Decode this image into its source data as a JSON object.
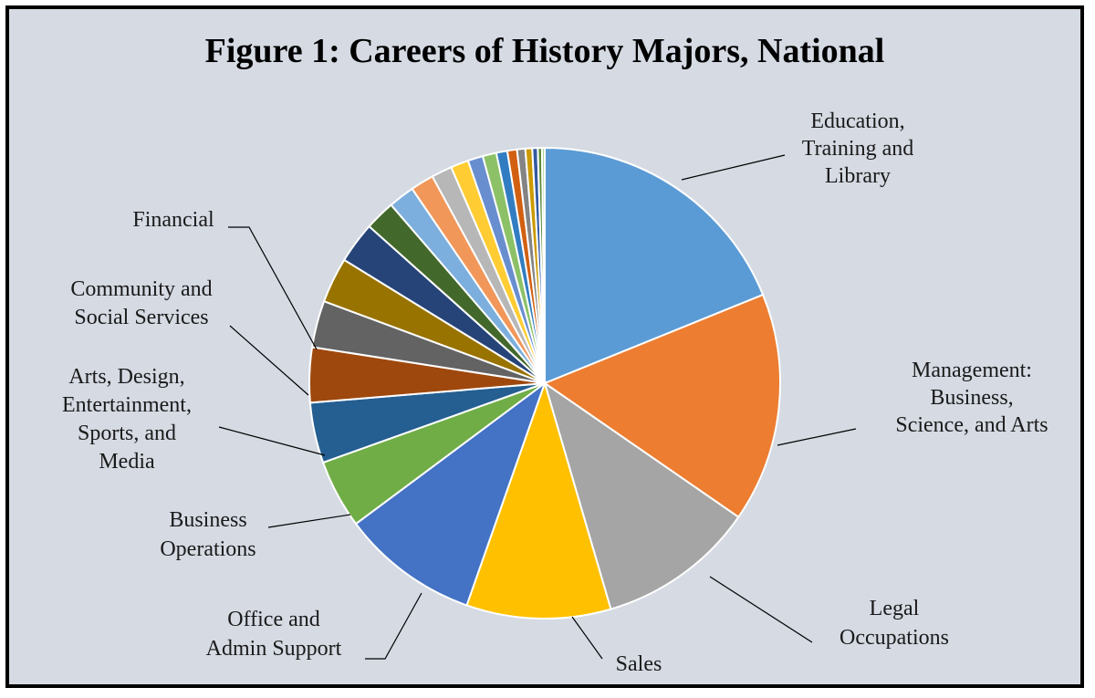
{
  "chart_data": {
    "type": "pie",
    "title": "Figure 1: Careers of History Majors, National",
    "slices": [
      {
        "label": "Education, Training and Library",
        "value": 20.0,
        "color": "#5b9bd5"
      },
      {
        "label": "Management: Business, Science, and Arts",
        "value": 16.7,
        "color": "#ed7d31"
      },
      {
        "label": "Legal Occupations",
        "value": 11.5,
        "color": "#a5a5a5"
      },
      {
        "label": "Sales",
        "value": 10.5,
        "color": "#ffc000"
      },
      {
        "label": "Office and Admin Support",
        "value": 10.0,
        "color": "#4472c4"
      },
      {
        "label": "Business Operations",
        "value": 5.0,
        "color": "#70ad47"
      },
      {
        "label": "Arts, Design, Entertainment, Sports, and Media",
        "value": 4.4,
        "color": "#255e91"
      },
      {
        "label": "",
        "value": 4.0,
        "color": "#9e480e"
      },
      {
        "label": "Community and Social Services",
        "value": 3.4,
        "color": "#636363"
      },
      {
        "label": "Financial",
        "value": 3.3,
        "color": "#997300"
      },
      {
        "label": "",
        "value": 3.0,
        "color": "#264478"
      },
      {
        "label": "",
        "value": 2.2,
        "color": "#43682b"
      },
      {
        "label": "",
        "value": 1.9,
        "color": "#7cafdd"
      },
      {
        "label": "",
        "value": 1.7,
        "color": "#f1975a"
      },
      {
        "label": "",
        "value": 1.5,
        "color": "#b7b7b7"
      },
      {
        "label": "",
        "value": 1.3,
        "color": "#ffcd33"
      },
      {
        "label": "",
        "value": 1.1,
        "color": "#698ed0"
      },
      {
        "label": "",
        "value": 1.0,
        "color": "#8cc168"
      },
      {
        "label": "",
        "value": 0.8,
        "color": "#327dc2"
      },
      {
        "label": "",
        "value": 0.7,
        "color": "#d26012"
      },
      {
        "label": "",
        "value": 0.6,
        "color": "#848484"
      },
      {
        "label": "",
        "value": 0.5,
        "color": "#cc9a00"
      },
      {
        "label": "",
        "value": 0.4,
        "color": "#335aa1"
      },
      {
        "label": "",
        "value": 0.3,
        "color": "#5a8a39"
      },
      {
        "label": "",
        "value": 0.2,
        "color": "#a9d18e"
      }
    ],
    "labels": [
      {
        "key": "edu",
        "lines": [
          "Education,",
          "Training and",
          "Library"
        ]
      },
      {
        "key": "mgmt",
        "lines": [
          "Management:",
          "Business,",
          "Science, and Arts"
        ]
      },
      {
        "key": "legal",
        "lines": [
          "Legal",
          "Occupations"
        ]
      },
      {
        "key": "sales",
        "lines": [
          "Sales"
        ]
      },
      {
        "key": "office",
        "lines": [
          "Office and",
          "Admin Support"
        ]
      },
      {
        "key": "busops",
        "lines": [
          "Business",
          "Operations"
        ]
      },
      {
        "key": "arts",
        "lines": [
          "Arts, Design,",
          "Entertainment,",
          "Sports, and",
          "Media"
        ]
      },
      {
        "key": "community",
        "lines": [
          "Community and",
          "Social Services"
        ]
      },
      {
        "key": "financial",
        "lines": [
          "Financial"
        ]
      }
    ],
    "legend": "none"
  }
}
